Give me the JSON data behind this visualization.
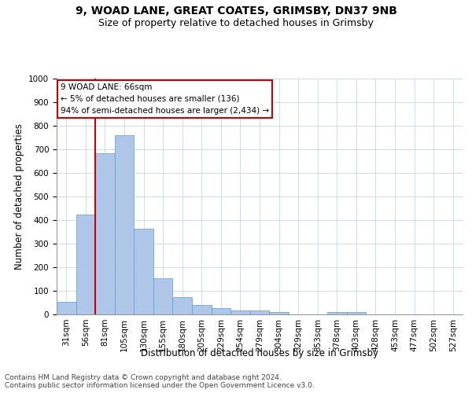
{
  "title_line1": "9, WOAD LANE, GREAT COATES, GRIMSBY, DN37 9NB",
  "title_line2": "Size of property relative to detached houses in Grimsby",
  "xlabel": "Distribution of detached houses by size in Grimsby",
  "ylabel": "Number of detached properties",
  "categories": [
    "31sqm",
    "56sqm",
    "81sqm",
    "105sqm",
    "130sqm",
    "155sqm",
    "180sqm",
    "205sqm",
    "229sqm",
    "254sqm",
    "279sqm",
    "304sqm",
    "329sqm",
    "353sqm",
    "378sqm",
    "403sqm",
    "428sqm",
    "453sqm",
    "477sqm",
    "502sqm",
    "527sqm"
  ],
  "values": [
    52,
    422,
    685,
    760,
    362,
    155,
    75,
    40,
    28,
    18,
    18,
    10,
    0,
    0,
    10,
    10,
    0,
    0,
    0,
    0,
    0
  ],
  "bar_color": "#aec6e8",
  "bar_edge_color": "#5b9bd5",
  "ylim": [
    0,
    1000
  ],
  "yticks": [
    0,
    100,
    200,
    300,
    400,
    500,
    600,
    700,
    800,
    900,
    1000
  ],
  "vline_x_index": 1,
  "vline_color": "#cc0000",
  "annotation_box_text": "9 WOAD LANE: 66sqm\n← 5% of detached houses are smaller (136)\n94% of semi-detached houses are larger (2,434) →",
  "footer_line1": "Contains HM Land Registry data © Crown copyright and database right 2024.",
  "footer_line2": "Contains public sector information licensed under the Open Government Licence v3.0.",
  "background_color": "#ffffff",
  "grid_color": "#c8d4e8",
  "title_fontsize": 10,
  "subtitle_fontsize": 9,
  "axis_label_fontsize": 8.5,
  "tick_fontsize": 7.5,
  "annotation_fontsize": 7.5,
  "footer_fontsize": 6.5
}
